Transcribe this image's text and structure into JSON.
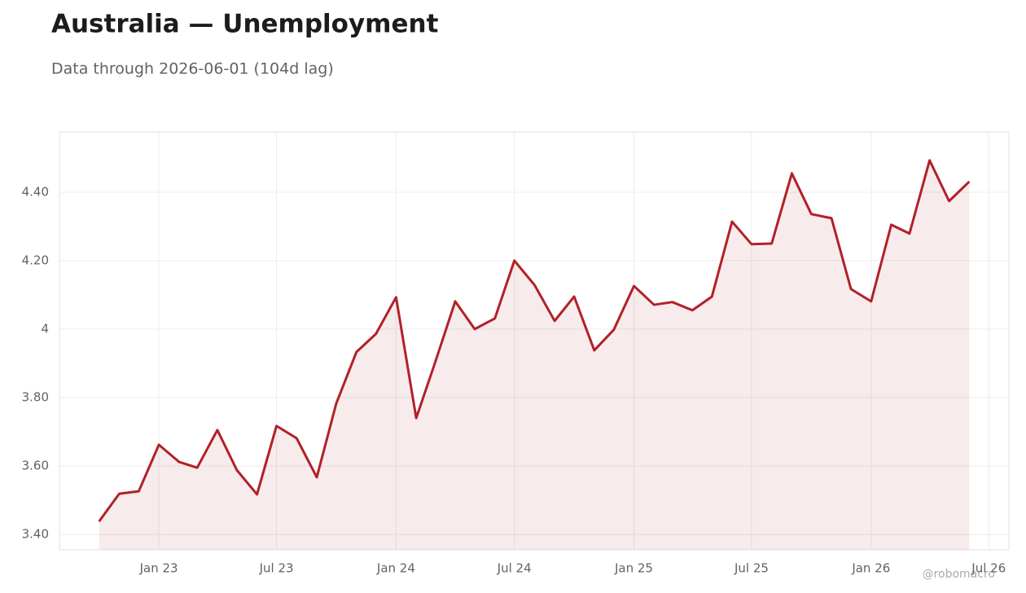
{
  "chart_data": {
    "type": "line",
    "title": "Australia — Unemployment",
    "subtitle": "Data through 2026-06-01 (104d lag)",
    "watermark": "@robomacro",
    "x": [
      "2022-10",
      "2022-11",
      "2022-12",
      "2023-01",
      "2023-02",
      "2023-03",
      "2023-04",
      "2023-05",
      "2023-06",
      "2023-07",
      "2023-08",
      "2023-09",
      "2023-10",
      "2023-11",
      "2023-12",
      "2024-01",
      "2024-02",
      "2024-03",
      "2024-04",
      "2024-05",
      "2024-06",
      "2024-07",
      "2024-08",
      "2024-09",
      "2024-10",
      "2024-11",
      "2024-12",
      "2025-01",
      "2025-02",
      "2025-03",
      "2025-04",
      "2025-05",
      "2025-06",
      "2025-07",
      "2025-08",
      "2025-09",
      "2025-10",
      "2025-11",
      "2025-12",
      "2026-01",
      "2026-02",
      "2026-03",
      "2026-04",
      "2026-05",
      "2026-06"
    ],
    "series": [
      {
        "name": "Unemployment",
        "color": "#b22028",
        "values": [
          3.438,
          3.519,
          3.526,
          3.662,
          3.612,
          3.595,
          3.705,
          3.588,
          3.517,
          3.717,
          3.681,
          3.567,
          3.783,
          3.933,
          3.986,
          4.093,
          3.74,
          3.902,
          4.081,
          4.0,
          4.031,
          4.2,
          4.129,
          4.024,
          4.095,
          3.938,
          3.998,
          4.126,
          4.071,
          4.079,
          4.055,
          4.095,
          4.314,
          4.248,
          4.25,
          4.455,
          4.336,
          4.324,
          4.117,
          4.081,
          4.305,
          4.279,
          4.493,
          4.374,
          4.431
        ]
      }
    ],
    "xlim": [
      "2022-08",
      "2026-08"
    ],
    "xticks": [
      {
        "value": "2023-01",
        "label": "Jan 23"
      },
      {
        "value": "2023-07",
        "label": "Jul 23"
      },
      {
        "value": "2024-01",
        "label": "Jan 24"
      },
      {
        "value": "2024-07",
        "label": "Jul 24"
      },
      {
        "value": "2025-01",
        "label": "Jan 25"
      },
      {
        "value": "2025-07",
        "label": "Jul 25"
      },
      {
        "value": "2026-01",
        "label": "Jan 26"
      },
      {
        "value": "2026-07",
        "label": "Jul 26"
      }
    ],
    "ylim": [
      3.355,
      4.576
    ],
    "yticks": [
      {
        "value": 3.4,
        "label": "3.40"
      },
      {
        "value": 3.6,
        "label": "3.60"
      },
      {
        "value": 3.8,
        "label": "3.80"
      },
      4,
      {
        "value": 4.2,
        "label": "4.20"
      },
      {
        "value": 4.4,
        "label": "4.40"
      }
    ],
    "grid": true,
    "area_fill": true
  }
}
